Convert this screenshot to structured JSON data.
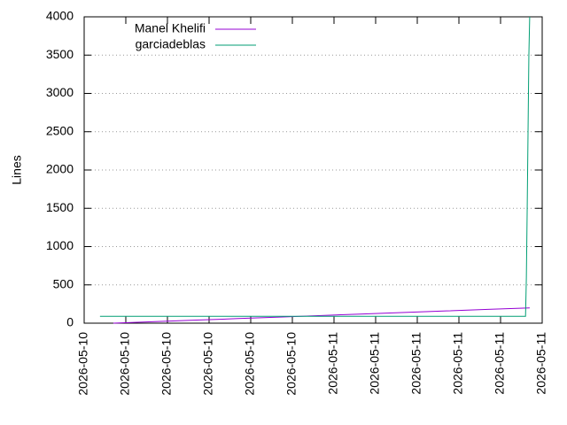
{
  "chart_data": {
    "type": "line",
    "ylabel": "Lines",
    "xlim": [
      0,
      11
    ],
    "xticks": [
      {
        "value": 0,
        "label": "2026-05-10"
      },
      {
        "value": 1,
        "label": "2026-05-10"
      },
      {
        "value": 2,
        "label": "2026-05-10"
      },
      {
        "value": 3,
        "label": "2026-05-10"
      },
      {
        "value": 4,
        "label": "2026-05-10"
      },
      {
        "value": 5,
        "label": "2026-05-10"
      },
      {
        "value": 6,
        "label": "2026-05-11"
      },
      {
        "value": 7,
        "label": "2026-05-11"
      },
      {
        "value": 8,
        "label": "2026-05-11"
      },
      {
        "value": 9,
        "label": "2026-05-11"
      },
      {
        "value": 10,
        "label": "2026-05-11"
      },
      {
        "value": 11,
        "label": "2026-05-11"
      }
    ],
    "ylim": [
      0,
      4000
    ],
    "yticks": [
      0,
      500,
      1000,
      1500,
      2000,
      2500,
      3000,
      3500,
      4000
    ],
    "grid": true,
    "legend": "top-left",
    "series": [
      {
        "name": "Manel Khelifi",
        "color": "#9400d3",
        "x": [
          0.7,
          1.7,
          2.7,
          3.7,
          4.7,
          5.7,
          6.7,
          7.7,
          8.7,
          9.7,
          10.7
        ],
        "values": [
          0,
          20,
          40,
          60,
          80,
          100,
          120,
          140,
          160,
          180,
          200
        ]
      },
      {
        "name": "garciadeblas",
        "color": "#009e73",
        "x": [
          0.38,
          10.6,
          10.62,
          10.64,
          10.66,
          10.68,
          10.7
        ],
        "values": [
          90,
          90,
          600,
          1500,
          2500,
          3500,
          4000
        ]
      }
    ]
  }
}
